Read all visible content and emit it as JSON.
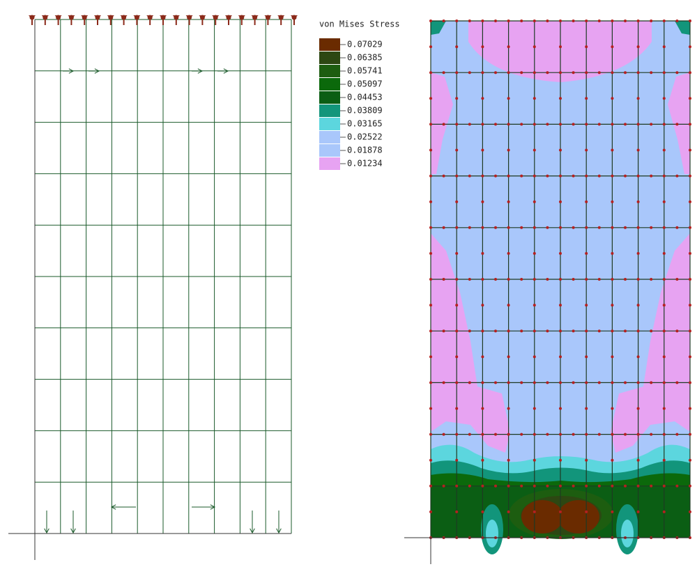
{
  "legend": {
    "title": "von Mises Stress",
    "entries": [
      {
        "label": "0.07029",
        "color": "#6a2b00"
      },
      {
        "label": "0.06385",
        "color": "#2d4712"
      },
      {
        "label": "0.05741",
        "color": "#1d5d10"
      },
      {
        "label": "0.05097",
        "color": "#0b690b"
      },
      {
        "label": "0.04453",
        "color": "#0b5e14"
      },
      {
        "label": "0.03809",
        "color": "#12957b"
      },
      {
        "label": "0.03165",
        "color": "#5cd6de"
      },
      {
        "label": "0.02522",
        "color": "#a9c7fb"
      },
      {
        "label": "0.01878",
        "color": "#a9c7fb"
      },
      {
        "label": "0.01234",
        "color": "#e7a3f2"
      }
    ]
  }
}
